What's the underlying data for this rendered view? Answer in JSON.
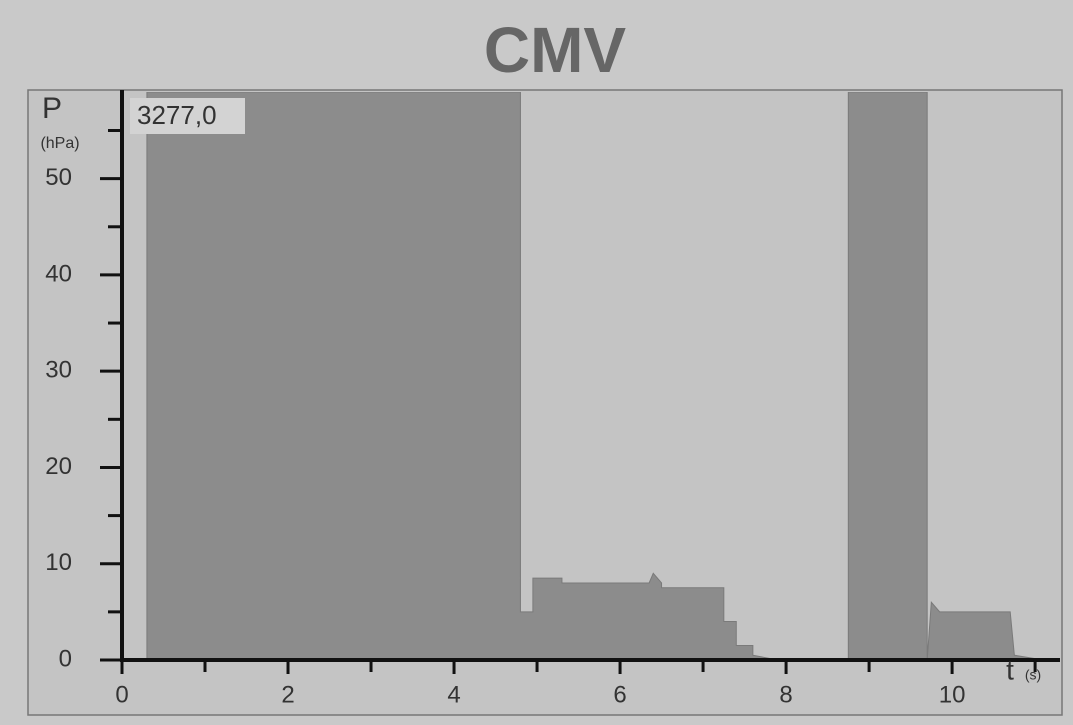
{
  "chart_data": {
    "type": "area",
    "title": "CMV",
    "ylabel": "P",
    "yunit": "(hPa)",
    "xlabel": "t",
    "xunit": "(s)",
    "readout": "3277,0",
    "x": [
      0,
      0.3,
      0.3,
      4.7,
      4.8,
      4.8,
      4.95,
      4.95,
      5.3,
      5.3,
      5.8,
      5.8,
      6.35,
      6.4,
      6.5,
      6.5,
      7.25,
      7.25,
      7.4,
      7.4,
      7.6,
      7.6,
      7.9,
      8.75,
      8.75,
      9.7,
      9.7,
      9.75,
      9.85,
      9.85,
      10.7,
      10.75,
      11.1
    ],
    "values": [
      0,
      0,
      59,
      59,
      59,
      5,
      5,
      8.5,
      8.5,
      8,
      8,
      8,
      8,
      9,
      8,
      7.5,
      7.5,
      4,
      4,
      1.5,
      1.5,
      0.5,
      0,
      0,
      59,
      59,
      0,
      6,
      5,
      5,
      5,
      0.5,
      0
    ],
    "color": "#8c8c8c",
    "xlim": [
      0,
      11.3
    ],
    "ylim": [
      0,
      59
    ],
    "xticks": [
      0,
      2,
      4,
      6,
      8,
      10
    ],
    "xminorticks": [
      1,
      3,
      5,
      7,
      9,
      11
    ],
    "yticks": [
      0,
      10,
      20,
      30,
      40,
      50
    ],
    "yminorticks": [
      5,
      15,
      25,
      35,
      45,
      55
    ]
  }
}
